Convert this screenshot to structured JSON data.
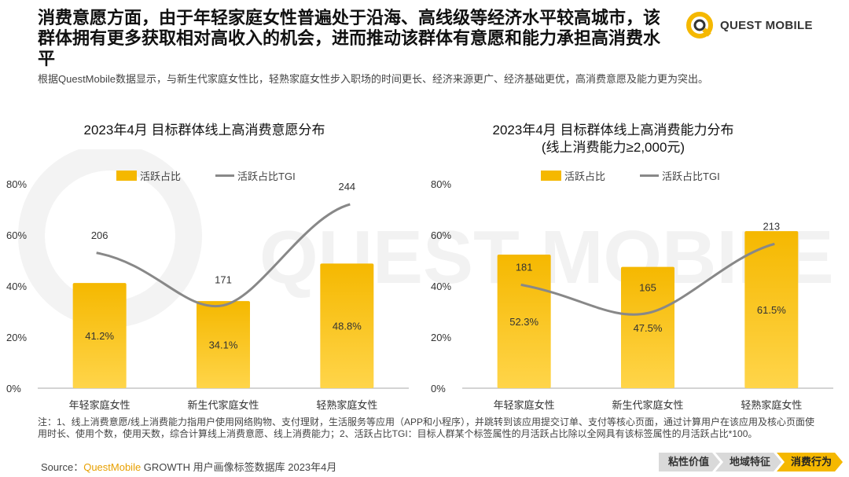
{
  "headline": "消费意愿方面，由于年轻家庭女性普遍处于沿海、高线级等经济水平较高城市，该群体拥有更多获取相对高收入的机会，进而推动该群体有意愿和能力承担高消费水平",
  "subtitle": "根据QuestMobile数据显示，与新生代家庭女性比，轻熟家庭女性步入职场的时间更长、经济来源更广、经济基础更优，高消费意愿及能力更为突出。",
  "logo": {
    "text": "QUEST MOBILE",
    "icon": "questmobile-logo-icon"
  },
  "watermark_text": "QUEST MOBILE",
  "colors": {
    "bar": "#f5b800",
    "bar_light": "#ffd54a",
    "line": "#888888",
    "accent": "#e8a000"
  },
  "chart_data": [
    {
      "type": "bar",
      "title": "2023年4月 目标群体线上高消费意愿分布",
      "title_line2": "",
      "categories": [
        "年轻家庭女性",
        "新生代家庭女性",
        "轻熟家庭女性"
      ],
      "series": [
        {
          "name": "活跃占比",
          "kind": "bar",
          "values": [
            41.2,
            34.1,
            48.8
          ],
          "labels": [
            "41.2%",
            "34.1%",
            "48.8%"
          ]
        },
        {
          "name": "活跃占比TGI",
          "kind": "line",
          "values": [
            206,
            171,
            244
          ],
          "labels": [
            "206",
            "171",
            "244"
          ]
        }
      ],
      "yticks": [
        "0%",
        "20%",
        "40%",
        "60%",
        "80%"
      ],
      "ylim": [
        0,
        80
      ],
      "legend": "top"
    },
    {
      "type": "bar",
      "title": "2023年4月 目标群体线上高消费能力分布",
      "title_line2": "(线上消费能力≥2,000元)",
      "categories": [
        "年轻家庭女性",
        "新生代家庭女性",
        "轻熟家庭女性"
      ],
      "series": [
        {
          "name": "活跃占比",
          "kind": "bar",
          "values": [
            52.3,
            47.5,
            61.5
          ],
          "labels": [
            "52.3%",
            "47.5%",
            "61.5%"
          ]
        },
        {
          "name": "活跃占比TGI",
          "kind": "line",
          "values": [
            181,
            165,
            213
          ],
          "labels": [
            "181",
            "165",
            "213"
          ]
        }
      ],
      "yticks": [
        "0%",
        "20%",
        "40%",
        "60%",
        "80%"
      ],
      "ylim": [
        0,
        80
      ],
      "legend": "top"
    }
  ],
  "note": "注：1、线上消费意愿/线上消费能力指用户使用网络购物、支付理财，生活服务等应用（APP和小程序），并跳转到该应用提交订单、支付等核心页面，通过计算用户在该应用及核心页面使用时长、使用个数，使用天数，综合计算线上消费意愿、线上消费能力；2、活跃占比TGI：目标人群某个标签属性的月活跃占比除以全网具有该标签属性的月活跃占比*100。",
  "source": {
    "prefix": "Source：",
    "brand": "QuestMobile",
    "rest": " GROWTH 用户画像标签数据库 2023年4月"
  },
  "nav": [
    {
      "label": "粘性价值",
      "active": false
    },
    {
      "label": "地域特征",
      "active": false
    },
    {
      "label": "消费行为",
      "active": true
    }
  ]
}
